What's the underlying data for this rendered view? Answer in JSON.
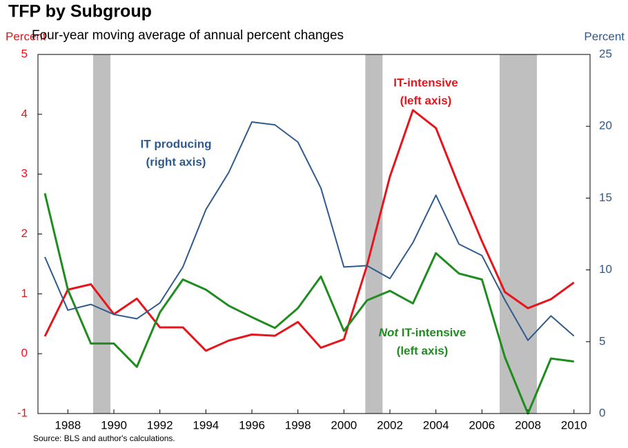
{
  "chart_data": {
    "type": "line",
    "title": "TFP by Subgroup",
    "subtitle": "Four-year moving average of annual percent changes",
    "ylabel": "Percent",
    "y2label": "Percent",
    "source": "Source: BLS and author's calculations.",
    "x": [
      1987,
      1988,
      1989,
      1990,
      1991,
      1992,
      1993,
      1994,
      1995,
      1996,
      1997,
      1998,
      1999,
      2000,
      2001,
      2002,
      2003,
      2004,
      2005,
      2006,
      2007,
      2008,
      2009,
      2010
    ],
    "xlim": [
      1986.7,
      2010.7
    ],
    "xticks": [
      1988,
      1990,
      1992,
      1994,
      1996,
      1998,
      2000,
      2002,
      2004,
      2006,
      2008,
      2010
    ],
    "ylim": [
      -1,
      5
    ],
    "yticks": [
      -1,
      0,
      1,
      2,
      3,
      4,
      5
    ],
    "y2lim": [
      0,
      25
    ],
    "y2ticks": [
      0,
      5,
      10,
      15,
      20,
      25
    ],
    "ylabel_color": "#e8141b",
    "y2label_color": "#2f5a8c",
    "shading": [
      [
        1989.1,
        1989.85
      ],
      [
        2000.93,
        2001.68
      ],
      [
        2006.77,
        2008.39
      ]
    ],
    "shading_color": "#bfbfbf",
    "series": [
      {
        "name": "IT-intensive",
        "color": "#e8141b",
        "axis": "y",
        "values": [
          0.29,
          1.07,
          1.16,
          0.66,
          0.92,
          0.44,
          0.44,
          0.05,
          0.22,
          0.32,
          0.3,
          0.53,
          0.1,
          0.24,
          1.47,
          2.96,
          4.07,
          3.77,
          2.8,
          1.88,
          1.03,
          0.76,
          0.91,
          1.19
        ]
      },
      {
        "name": "Not IT-intensive",
        "color": "#1f8c1f",
        "axis": "y",
        "values": [
          2.68,
          1.07,
          0.17,
          0.17,
          -0.22,
          0.69,
          1.24,
          1.07,
          0.8,
          0.61,
          0.43,
          0.76,
          1.29,
          0.38,
          0.89,
          1.05,
          0.84,
          1.68,
          1.34,
          1.24,
          -0.06,
          -1.0,
          -0.08,
          -0.13
        ]
      },
      {
        "name": "IT producing",
        "color": "#2f5a8c",
        "axis": "y2",
        "values": [
          10.9,
          7.2,
          7.6,
          6.9,
          6.6,
          7.7,
          10.2,
          14.2,
          16.8,
          20.3,
          20.1,
          18.9,
          15.7,
          10.2,
          10.3,
          9.4,
          11.9,
          15.2,
          11.8,
          11.0,
          7.9,
          5.1,
          6.8,
          5.4
        ]
      }
    ],
    "annotations": {
      "it_producing": [
        "IT producing",
        "(right axis)"
      ],
      "it_intensive": [
        "IT-intensive",
        "(left axis)"
      ],
      "not_it_intensive": {
        "italic": "Not",
        "rest": "IT-intensive",
        "line2": "(left axis)"
      }
    }
  }
}
